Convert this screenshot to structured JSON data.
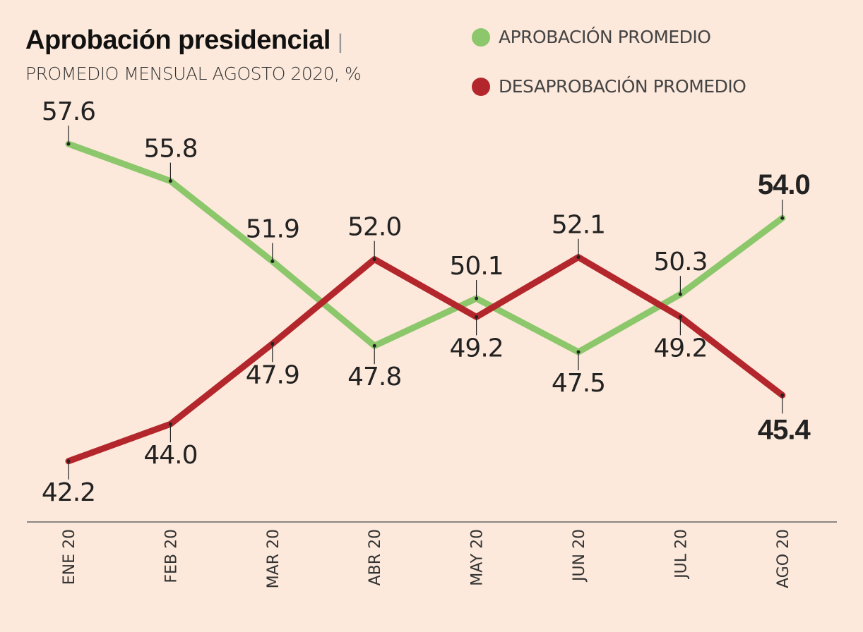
{
  "chart_data": {
    "type": "line",
    "title": "Aprobación presidencial",
    "title_separator": "|",
    "subtitle": "PROMEDIO MENSUAL AGOSTO 2020, %",
    "categories": [
      "ENE 20",
      "FEB 20",
      "MAR 20",
      "ABR 20",
      "MAY 20",
      "JUN 20",
      "JUL 20",
      "AGO 20"
    ],
    "series": [
      {
        "name": "APROBACIÓN PROMEDIO",
        "color": "#8cc76b",
        "values": [
          57.6,
          55.8,
          51.9,
          47.8,
          50.1,
          47.5,
          50.3,
          54.0
        ]
      },
      {
        "name": "DESAPROBACIÓN PROMEDIO",
        "color": "#b3272c",
        "values": [
          42.2,
          44.0,
          47.9,
          52.0,
          49.2,
          52.1,
          49.2,
          45.4
        ]
      }
    ],
    "ylim": [
      40,
      60
    ],
    "grid": false,
    "legend_placement": "top-right",
    "highlight_last": true
  }
}
